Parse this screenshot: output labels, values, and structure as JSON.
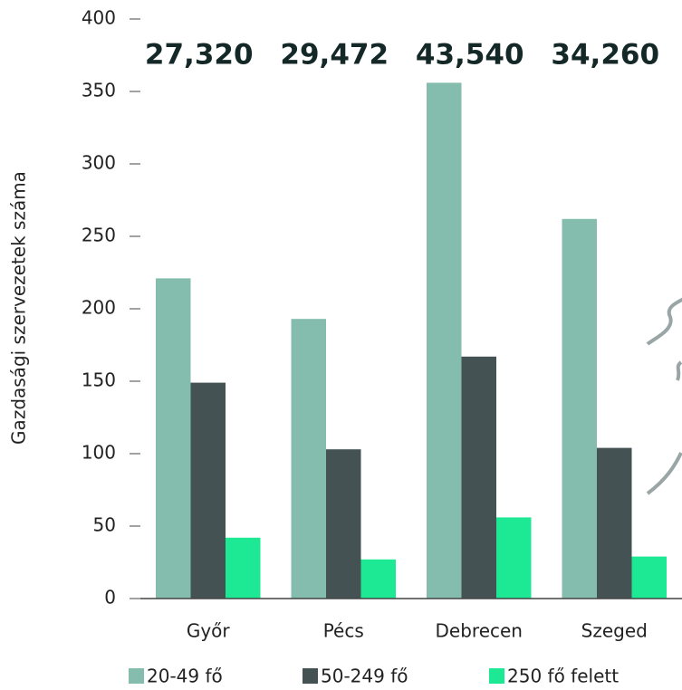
{
  "chart_data": {
    "type": "bar",
    "y_label": "Gazdasági szervezetek száma",
    "categories": [
      "Győr",
      "Pécs",
      "Debrecen",
      "Szeged"
    ],
    "annotations": [
      "27,320",
      "29,472",
      "43,540",
      "34,260"
    ],
    "series": [
      {
        "name": "20-49 fő",
        "color": "#84bcad",
        "values": [
          221,
          193,
          356,
          262
        ]
      },
      {
        "name": "50-249 fő",
        "color": "#445254",
        "values": [
          149,
          103,
          167,
          104
        ]
      },
      {
        "name": "250 fő felett",
        "color": "#1de994",
        "values": [
          42,
          27,
          56,
          29
        ]
      }
    ],
    "ylim": [
      0,
      400
    ],
    "yticks": [
      0,
      50,
      100,
      150,
      200,
      250,
      300,
      350,
      400
    ]
  }
}
